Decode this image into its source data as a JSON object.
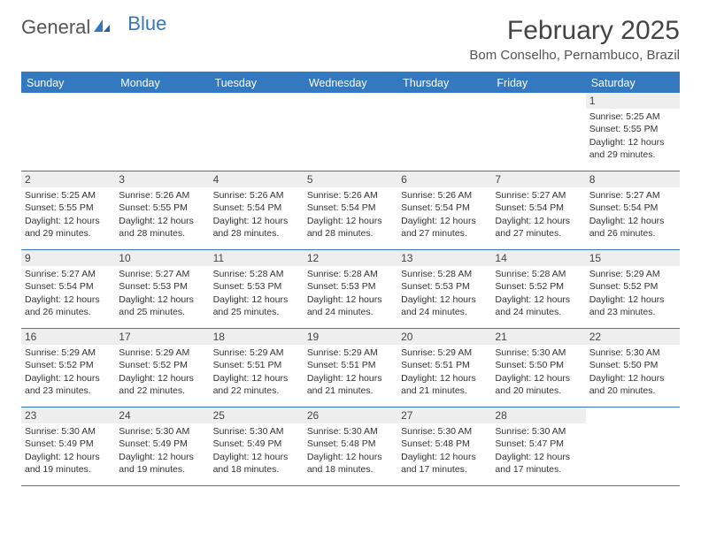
{
  "brand": {
    "part1": "General",
    "part2": "Blue"
  },
  "title": "February 2025",
  "location": "Bom Conselho, Pernambuco, Brazil",
  "colors": {
    "header_bg": "#3478c0",
    "header_text": "#ffffff",
    "daynum_bg": "#eeeeee",
    "border": "#3478c0",
    "text": "#333333",
    "background": "#ffffff"
  },
  "day_headers": [
    "Sunday",
    "Monday",
    "Tuesday",
    "Wednesday",
    "Thursday",
    "Friday",
    "Saturday"
  ],
  "weeks": [
    [
      {
        "empty": true
      },
      {
        "empty": true
      },
      {
        "empty": true
      },
      {
        "empty": true
      },
      {
        "empty": true
      },
      {
        "empty": true
      },
      {
        "num": "1",
        "sunrise": "Sunrise: 5:25 AM",
        "sunset": "Sunset: 5:55 PM",
        "day1": "Daylight: 12 hours",
        "day2": "and 29 minutes."
      }
    ],
    [
      {
        "num": "2",
        "sunrise": "Sunrise: 5:25 AM",
        "sunset": "Sunset: 5:55 PM",
        "day1": "Daylight: 12 hours",
        "day2": "and 29 minutes."
      },
      {
        "num": "3",
        "sunrise": "Sunrise: 5:26 AM",
        "sunset": "Sunset: 5:55 PM",
        "day1": "Daylight: 12 hours",
        "day2": "and 28 minutes."
      },
      {
        "num": "4",
        "sunrise": "Sunrise: 5:26 AM",
        "sunset": "Sunset: 5:54 PM",
        "day1": "Daylight: 12 hours",
        "day2": "and 28 minutes."
      },
      {
        "num": "5",
        "sunrise": "Sunrise: 5:26 AM",
        "sunset": "Sunset: 5:54 PM",
        "day1": "Daylight: 12 hours",
        "day2": "and 28 minutes."
      },
      {
        "num": "6",
        "sunrise": "Sunrise: 5:26 AM",
        "sunset": "Sunset: 5:54 PM",
        "day1": "Daylight: 12 hours",
        "day2": "and 27 minutes."
      },
      {
        "num": "7",
        "sunrise": "Sunrise: 5:27 AM",
        "sunset": "Sunset: 5:54 PM",
        "day1": "Daylight: 12 hours",
        "day2": "and 27 minutes."
      },
      {
        "num": "8",
        "sunrise": "Sunrise: 5:27 AM",
        "sunset": "Sunset: 5:54 PM",
        "day1": "Daylight: 12 hours",
        "day2": "and 26 minutes."
      }
    ],
    [
      {
        "num": "9",
        "sunrise": "Sunrise: 5:27 AM",
        "sunset": "Sunset: 5:54 PM",
        "day1": "Daylight: 12 hours",
        "day2": "and 26 minutes."
      },
      {
        "num": "10",
        "sunrise": "Sunrise: 5:27 AM",
        "sunset": "Sunset: 5:53 PM",
        "day1": "Daylight: 12 hours",
        "day2": "and 25 minutes."
      },
      {
        "num": "11",
        "sunrise": "Sunrise: 5:28 AM",
        "sunset": "Sunset: 5:53 PM",
        "day1": "Daylight: 12 hours",
        "day2": "and 25 minutes."
      },
      {
        "num": "12",
        "sunrise": "Sunrise: 5:28 AM",
        "sunset": "Sunset: 5:53 PM",
        "day1": "Daylight: 12 hours",
        "day2": "and 24 minutes."
      },
      {
        "num": "13",
        "sunrise": "Sunrise: 5:28 AM",
        "sunset": "Sunset: 5:53 PM",
        "day1": "Daylight: 12 hours",
        "day2": "and 24 minutes."
      },
      {
        "num": "14",
        "sunrise": "Sunrise: 5:28 AM",
        "sunset": "Sunset: 5:52 PM",
        "day1": "Daylight: 12 hours",
        "day2": "and 24 minutes."
      },
      {
        "num": "15",
        "sunrise": "Sunrise: 5:29 AM",
        "sunset": "Sunset: 5:52 PM",
        "day1": "Daylight: 12 hours",
        "day2": "and 23 minutes."
      }
    ],
    [
      {
        "num": "16",
        "sunrise": "Sunrise: 5:29 AM",
        "sunset": "Sunset: 5:52 PM",
        "day1": "Daylight: 12 hours",
        "day2": "and 23 minutes."
      },
      {
        "num": "17",
        "sunrise": "Sunrise: 5:29 AM",
        "sunset": "Sunset: 5:52 PM",
        "day1": "Daylight: 12 hours",
        "day2": "and 22 minutes."
      },
      {
        "num": "18",
        "sunrise": "Sunrise: 5:29 AM",
        "sunset": "Sunset: 5:51 PM",
        "day1": "Daylight: 12 hours",
        "day2": "and 22 minutes."
      },
      {
        "num": "19",
        "sunrise": "Sunrise: 5:29 AM",
        "sunset": "Sunset: 5:51 PM",
        "day1": "Daylight: 12 hours",
        "day2": "and 21 minutes."
      },
      {
        "num": "20",
        "sunrise": "Sunrise: 5:29 AM",
        "sunset": "Sunset: 5:51 PM",
        "day1": "Daylight: 12 hours",
        "day2": "and 21 minutes."
      },
      {
        "num": "21",
        "sunrise": "Sunrise: 5:30 AM",
        "sunset": "Sunset: 5:50 PM",
        "day1": "Daylight: 12 hours",
        "day2": "and 20 minutes."
      },
      {
        "num": "22",
        "sunrise": "Sunrise: 5:30 AM",
        "sunset": "Sunset: 5:50 PM",
        "day1": "Daylight: 12 hours",
        "day2": "and 20 minutes."
      }
    ],
    [
      {
        "num": "23",
        "sunrise": "Sunrise: 5:30 AM",
        "sunset": "Sunset: 5:49 PM",
        "day1": "Daylight: 12 hours",
        "day2": "and 19 minutes."
      },
      {
        "num": "24",
        "sunrise": "Sunrise: 5:30 AM",
        "sunset": "Sunset: 5:49 PM",
        "day1": "Daylight: 12 hours",
        "day2": "and 19 minutes."
      },
      {
        "num": "25",
        "sunrise": "Sunrise: 5:30 AM",
        "sunset": "Sunset: 5:49 PM",
        "day1": "Daylight: 12 hours",
        "day2": "and 18 minutes."
      },
      {
        "num": "26",
        "sunrise": "Sunrise: 5:30 AM",
        "sunset": "Sunset: 5:48 PM",
        "day1": "Daylight: 12 hours",
        "day2": "and 18 minutes."
      },
      {
        "num": "27",
        "sunrise": "Sunrise: 5:30 AM",
        "sunset": "Sunset: 5:48 PM",
        "day1": "Daylight: 12 hours",
        "day2": "and 17 minutes."
      },
      {
        "num": "28",
        "sunrise": "Sunrise: 5:30 AM",
        "sunset": "Sunset: 5:47 PM",
        "day1": "Daylight: 12 hours",
        "day2": "and 17 minutes."
      },
      {
        "empty": true
      }
    ]
  ]
}
